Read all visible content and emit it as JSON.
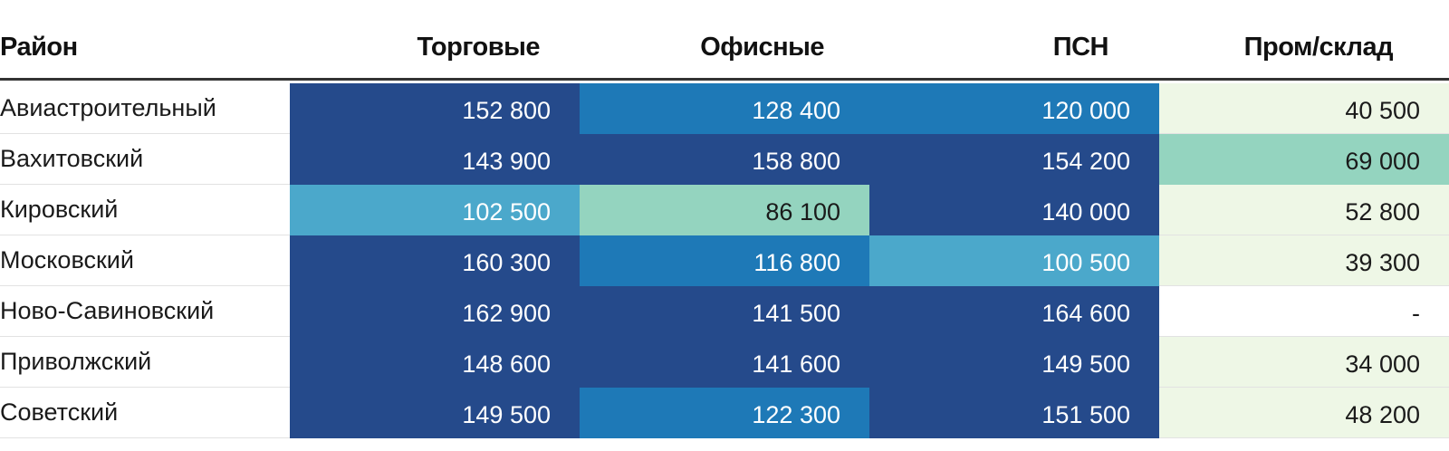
{
  "chart_data": {
    "type": "table",
    "columns": [
      "Район",
      "Торговые",
      "Офисные",
      "ПСН",
      "Пром/склад"
    ],
    "rows": [
      {
        "district": "Авиастроительный",
        "values": [
          "152 800",
          "128 400",
          "120 000",
          "40 500"
        ],
        "levels": [
          4,
          3,
          3,
          0
        ]
      },
      {
        "district": "Вахитовский",
        "values": [
          "143 900",
          "158 800",
          "154 200",
          "69 000"
        ],
        "levels": [
          4,
          4,
          4,
          1
        ]
      },
      {
        "district": "Кировский",
        "values": [
          "102 500",
          "86 100",
          "140 000",
          "52 800"
        ],
        "levels": [
          2,
          1,
          4,
          0
        ]
      },
      {
        "district": "Московский",
        "values": [
          "160 300",
          "116 800",
          "100 500",
          "39 300"
        ],
        "levels": [
          4,
          3,
          2,
          0
        ]
      },
      {
        "district": "Ново-Савиновский",
        "values": [
          "162 900",
          "141 500",
          "164 600",
          "-"
        ],
        "levels": [
          4,
          4,
          4,
          -1
        ]
      },
      {
        "district": "Приволжский",
        "values": [
          "148 600",
          "141 600",
          "149 500",
          "34 000"
        ],
        "levels": [
          4,
          4,
          4,
          0
        ]
      },
      {
        "district": "Советский",
        "values": [
          "149 500",
          "122 300",
          "151 500",
          "48 200"
        ],
        "levels": [
          4,
          3,
          4,
          0
        ]
      }
    ]
  },
  "colors": {
    "level_-1": "#ffffff",
    "level_0": "#eef7e6",
    "level_1": "#94d4bf",
    "level_2": "#4ba8cb",
    "level_3": "#1e79b7",
    "level_4": "#254a8b",
    "text_light": "#ffffff",
    "text_dark": "#1a1a1a"
  }
}
